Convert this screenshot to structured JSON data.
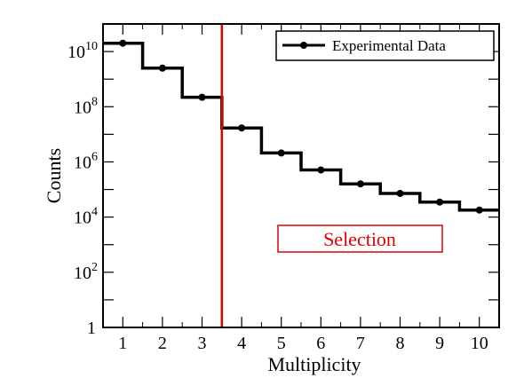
{
  "chart_data": {
    "type": "line",
    "step": true,
    "title": "",
    "xlabel": "Multiplicity",
    "ylabel": "Counts",
    "yscale": "log",
    "xlim": [
      0.5,
      10.5
    ],
    "ylim": [
      1,
      100000000000
    ],
    "x": [
      1,
      2,
      3,
      4,
      5,
      6,
      7,
      8,
      9,
      10
    ],
    "series": [
      {
        "name": "Experimental Data",
        "color": "#000000",
        "values": [
          20000000000,
          2500000000,
          220000000,
          17000000,
          2100000,
          510000,
          160000,
          72000,
          35000,
          18000
        ]
      }
    ],
    "x_ticks": [
      "1",
      "2",
      "3",
      "4",
      "5",
      "6",
      "7",
      "8",
      "9",
      "10"
    ],
    "y_ticks": [
      {
        "value": 1,
        "base": "1",
        "exp": ""
      },
      {
        "value": 100,
        "base": "10",
        "exp": "2"
      },
      {
        "value": 10000,
        "base": "10",
        "exp": "4"
      },
      {
        "value": 1000000,
        "base": "10",
        "exp": "6"
      },
      {
        "value": 100000000,
        "base": "10",
        "exp": "8"
      },
      {
        "value": 10000000000,
        "base": "10",
        "exp": "10"
      }
    ],
    "legend_position": "top-right",
    "cut_line": {
      "x": 3.5,
      "color": "#e00000"
    },
    "annotation": {
      "text": "Selection",
      "color": "#e00000"
    },
    "grid": false
  }
}
